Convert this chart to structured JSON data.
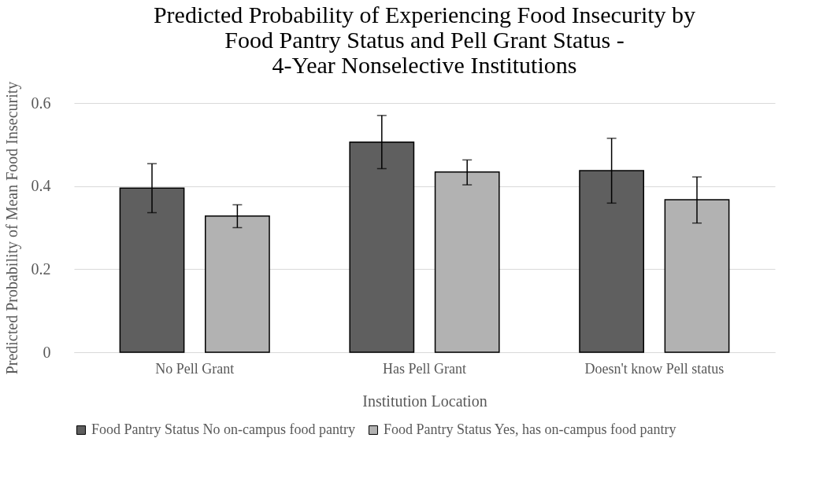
{
  "chart_data": {
    "type": "bar",
    "title": "Predicted Probability of Experiencing Food Insecurity by\nFood Pantry Status and Pell Grant Status -\n4-Year Nonselective Institutions",
    "xlabel": "Institution Location",
    "ylabel": "Predicted Probability of Mean Food Insecurity",
    "categories": [
      "No Pell Grant",
      "Has Pell Grant",
      "Doesn't know Pell status"
    ],
    "series": [
      {
        "name": "Food Pantry Status No on-campus food pantry",
        "color": "#5f5f5f",
        "values": [
          0.395,
          0.506,
          0.437
        ],
        "errors": [
          [
            0.336,
            0.454
          ],
          [
            0.442,
            0.57
          ],
          [
            0.359,
            0.515
          ]
        ]
      },
      {
        "name": "Food Pantry Status Yes, has on-campus food pantry",
        "color": "#b2b2b2",
        "values": [
          0.328,
          0.434,
          0.367
        ],
        "errors": [
          [
            0.3,
            0.355
          ],
          [
            0.403,
            0.463
          ],
          [
            0.311,
            0.422
          ]
        ]
      }
    ],
    "ylim": [
      0,
      0.6
    ],
    "yticks": [
      0,
      0.2,
      0.4,
      0.6
    ],
    "grid": "y",
    "legend": "bottom"
  }
}
